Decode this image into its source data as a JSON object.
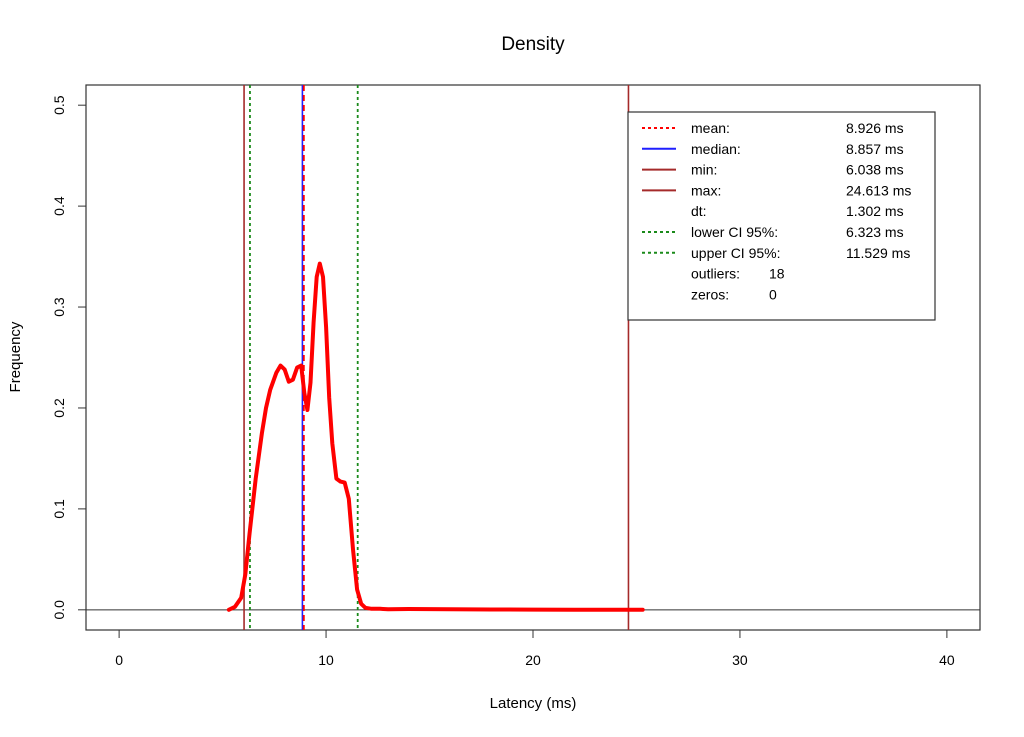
{
  "chart_data": {
    "type": "line",
    "title": "Density",
    "xlabel": "Latency (ms)",
    "ylabel": "Frequency",
    "xlim": [
      -1.6,
      41.6
    ],
    "ylim": [
      -0.02,
      0.52
    ],
    "x_ticks": [
      0,
      10,
      20,
      30,
      40
    ],
    "x_tick_labels": [
      "0",
      "10",
      "20",
      "30",
      "40"
    ],
    "y_ticks": [
      0.0,
      0.1,
      0.2,
      0.3,
      0.4,
      0.5
    ],
    "y_tick_labels": [
      "0.0",
      "0.1",
      "0.2",
      "0.3",
      "0.4",
      "0.5"
    ],
    "grid": false,
    "baseline": 0,
    "series": [
      {
        "color": "#ff0000",
        "x": [
          5.3,
          5.6,
          5.9,
          6.1,
          6.3,
          6.6,
          6.9,
          7.1,
          7.3,
          7.6,
          7.8,
          8.0,
          8.2,
          8.4,
          8.6,
          8.8,
          8.95,
          9.1,
          9.25,
          9.4,
          9.55,
          9.7,
          9.85,
          10.0,
          10.15,
          10.3,
          10.5,
          10.7,
          10.9,
          11.1,
          11.3,
          11.5,
          11.7,
          11.9,
          12.2,
          12.6,
          13.0,
          14.0,
          16.0,
          18.0,
          20.0,
          22.0,
          24.0,
          25.3
        ],
        "y": [
          0.0,
          0.003,
          0.012,
          0.035,
          0.075,
          0.13,
          0.175,
          0.2,
          0.218,
          0.235,
          0.242,
          0.238,
          0.226,
          0.228,
          0.24,
          0.242,
          0.215,
          0.198,
          0.225,
          0.285,
          0.33,
          0.343,
          0.33,
          0.28,
          0.21,
          0.165,
          0.13,
          0.127,
          0.126,
          0.11,
          0.06,
          0.02,
          0.006,
          0.002,
          0.001,
          0.001,
          0.0005,
          0.0008,
          0.0006,
          0.0003,
          0.0002,
          0.0001,
          0.0001,
          0.0
        ]
      }
    ],
    "vlines": [
      {
        "x": 6.038,
        "color": "#a52a2a",
        "style": "solid"
      },
      {
        "x": 24.613,
        "color": "#a52a2a",
        "style": "solid"
      },
      {
        "x": 6.323,
        "color": "#1a8a1a",
        "style": "dotted"
      },
      {
        "x": 11.529,
        "color": "#1a8a1a",
        "style": "dotted"
      },
      {
        "x": 8.857,
        "color": "#1f1fff",
        "style": "solid"
      },
      {
        "x": 8.926,
        "color": "#ff0000",
        "style": "dashed"
      }
    ],
    "legend": {
      "position": "top-right",
      "entries": [
        {
          "label": "mean:",
          "value": "8.926 ms",
          "color": "#ff0000",
          "style": "dotted"
        },
        {
          "label": "median:",
          "value": "8.857 ms",
          "color": "#1f1fff",
          "style": "solid"
        },
        {
          "label": "min:",
          "value": "6.038 ms",
          "color": "#a52a2a",
          "style": "solid"
        },
        {
          "label": "max:",
          "value": "24.613 ms",
          "color": "#a52a2a",
          "style": "solid"
        },
        {
          "label": "dt:",
          "value": "1.302 ms",
          "color": "",
          "style": "none"
        },
        {
          "label": "lower CI 95%:",
          "value": "6.323 ms",
          "color": "#1a8a1a",
          "style": "dotted"
        },
        {
          "label": "upper CI 95%:",
          "value": "11.529 ms",
          "color": "#1a8a1a",
          "style": "dotted"
        },
        {
          "label": "outliers:",
          "value": "18",
          "color": "",
          "style": "none"
        },
        {
          "label": "zeros:",
          "value": "0",
          "color": "",
          "style": "none"
        }
      ]
    }
  }
}
